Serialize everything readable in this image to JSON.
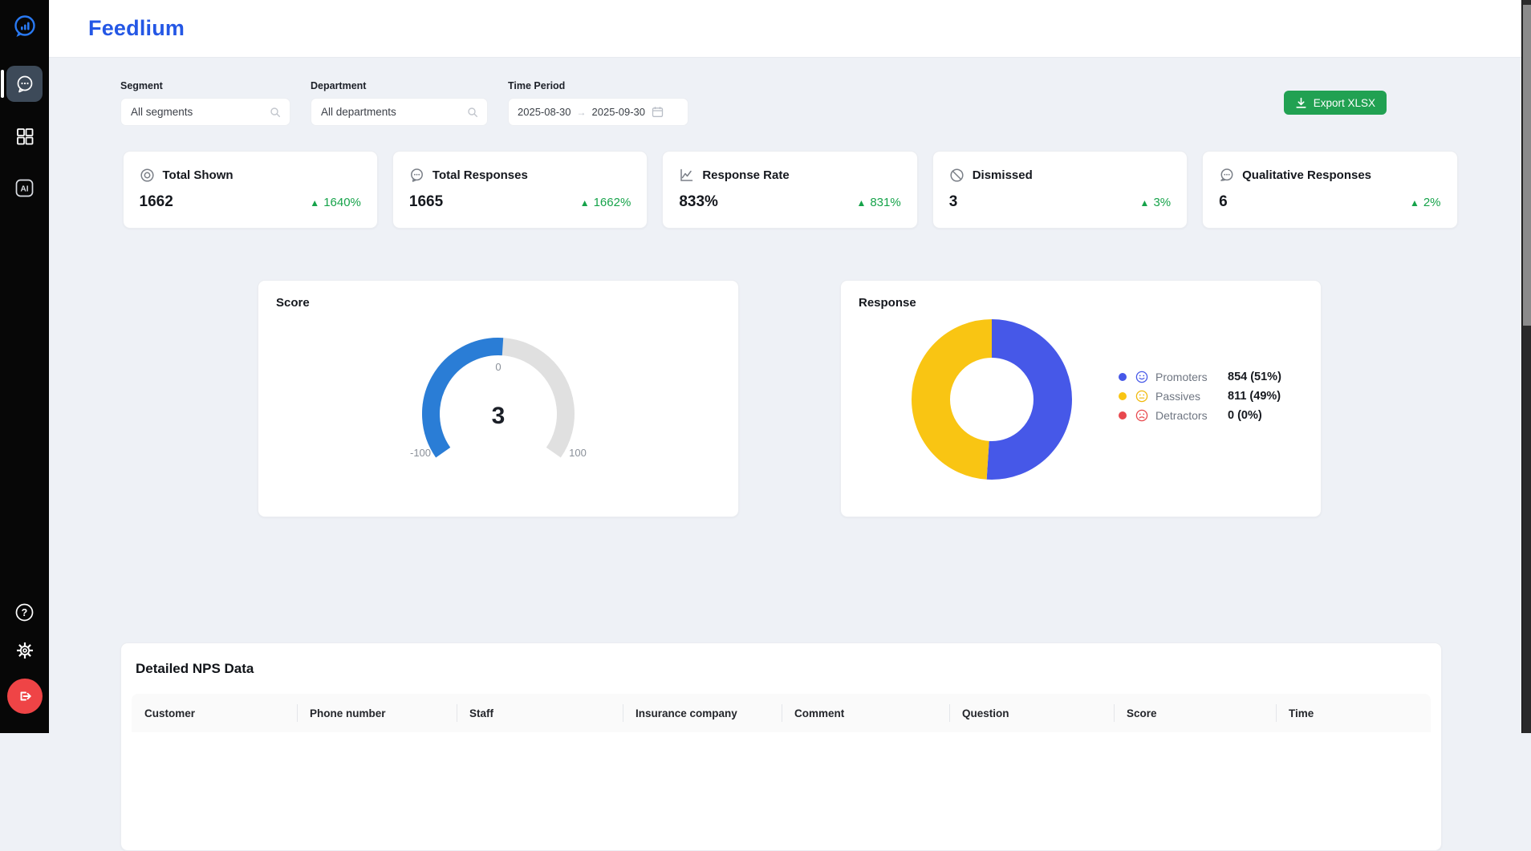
{
  "app": {
    "title": "Feedlium"
  },
  "sidebar": {
    "ai_label": "AI"
  },
  "filters": {
    "segment": {
      "label": "Segment",
      "value": "All segments"
    },
    "department": {
      "label": "Department",
      "value": "All departments"
    },
    "time_period": {
      "label": "Time Period",
      "start": "2025-08-30",
      "end": "2025-09-30"
    }
  },
  "toolbar": {
    "export_label": "Export XLSX"
  },
  "stats": [
    {
      "title": "Total Shown",
      "value": "1662",
      "delta": "1640%"
    },
    {
      "title": "Total Responses",
      "value": "1665",
      "delta": "1662%"
    },
    {
      "title": "Response Rate",
      "value": "833%",
      "delta": "831%"
    },
    {
      "title": "Dismissed",
      "value": "3",
      "delta": "3%"
    },
    {
      "title": "Qualitative Responses",
      "value": "6",
      "delta": "2%"
    }
  ],
  "chart_data": [
    {
      "type": "gauge",
      "title": "Score",
      "value": 3,
      "min": -100,
      "max": 100,
      "value_label": "3",
      "tick_labels": {
        "min": "-100",
        "mid": "0",
        "max": "100"
      },
      "colors": {
        "fill": "#2a7dd6",
        "track": "#e0e0e0"
      }
    },
    {
      "type": "pie",
      "title": "Response",
      "donut": true,
      "legend_position": "right",
      "series": [
        {
          "name": "Promoters",
          "value": 854,
          "pct": 51,
          "label": "854 (51%)",
          "color": "#4658e8"
        },
        {
          "name": "Passives",
          "value": 811,
          "pct": 49,
          "label": "811 (49%)",
          "color": "#f9c513"
        },
        {
          "name": "Detractors",
          "value": 0,
          "pct": 0,
          "label": "0 (0%)",
          "color": "#e8484e"
        }
      ]
    }
  ],
  "table": {
    "title": "Detailed NPS Data",
    "columns": [
      "Customer",
      "Phone number",
      "Staff",
      "Insurance company",
      "Comment",
      "Question",
      "Score",
      "Time"
    ],
    "rows": []
  },
  "colors": {
    "accent_blue": "#2457e5",
    "success_green": "#16a34a",
    "export_green": "#21a152",
    "sidebar_active": "#3d4a59",
    "logout_red": "#ef4446"
  }
}
